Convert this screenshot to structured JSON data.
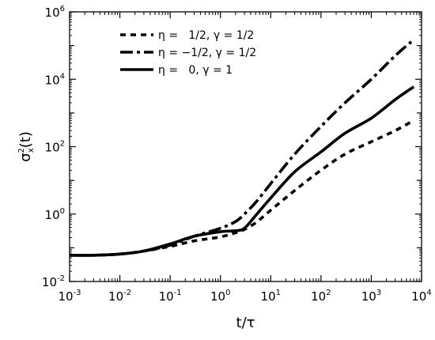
{
  "chart_data": {
    "type": "line",
    "title": "",
    "xlabel": "t/τ",
    "ylabel_base": "σ",
    "ylabel_sup": "2",
    "ylabel_sub": "x",
    "ylabel_tail": "(t)",
    "xscale": "log",
    "yscale": "log",
    "xlim": [
      0.001,
      10000
    ],
    "ylim": [
      0.01,
      1000000
    ],
    "grid": false,
    "legend_position": "top-left",
    "x_ticks": [
      {
        "base": "10",
        "exp": "-3",
        "value": 0.001
      },
      {
        "base": "10",
        "exp": "-2",
        "value": 0.01
      },
      {
        "base": "10",
        "exp": "-1",
        "value": 0.1
      },
      {
        "base": "10",
        "exp": "0",
        "value": 1
      },
      {
        "base": "10",
        "exp": "1",
        "value": 10
      },
      {
        "base": "10",
        "exp": "2",
        "value": 100
      },
      {
        "base": "10",
        "exp": "3",
        "value": 1000
      },
      {
        "base": "10",
        "exp": "4",
        "value": 10000
      }
    ],
    "y_ticks": [
      {
        "base": "10",
        "exp": "-2",
        "value": 0.01
      },
      {
        "base": "10",
        "exp": "0",
        "value": 1
      },
      {
        "base": "10",
        "exp": "2",
        "value": 100
      },
      {
        "base": "10",
        "exp": "4",
        "value": 10000
      },
      {
        "base": "10",
        "exp": "6",
        "value": 1000000
      }
    ],
    "series": [
      {
        "name": "η =   1/2, γ = 1/2",
        "style": "dotted",
        "color": "#000000",
        "x": [
          0.001,
          0.003,
          0.01,
          0.03,
          0.1,
          0.3,
          1,
          2,
          3,
          5,
          10,
          30,
          100,
          300,
          1000,
          3000,
          7000
        ],
        "y": [
          0.06,
          0.06,
          0.065,
          0.08,
          0.11,
          0.16,
          0.21,
          0.28,
          0.35,
          0.55,
          1.3,
          5,
          20,
          60,
          140,
          300,
          600
        ]
      },
      {
        "name": "η = −1/2, γ = 1/2",
        "style": "dash-dot",
        "color": "#000000",
        "x": [
          0.001,
          0.003,
          0.01,
          0.03,
          0.1,
          0.3,
          1,
          2,
          3,
          5,
          10,
          30,
          100,
          300,
          1000,
          3000,
          7000
        ],
        "y": [
          0.06,
          0.06,
          0.065,
          0.08,
          0.12,
          0.22,
          0.38,
          0.6,
          1,
          2.2,
          8,
          60,
          400,
          2000,
          10000,
          50000,
          150000
        ]
      },
      {
        "name": "η =   0, γ = 1",
        "style": "solid",
        "color": "#000000",
        "x": [
          0.001,
          0.003,
          0.01,
          0.03,
          0.1,
          0.3,
          1,
          2,
          3,
          5,
          10,
          30,
          100,
          300,
          1000,
          3000,
          7000
        ],
        "y": [
          0.06,
          0.06,
          0.065,
          0.08,
          0.13,
          0.22,
          0.3,
          0.32,
          0.38,
          0.9,
          3,
          18,
          70,
          250,
          700,
          2500,
          6000
        ]
      }
    ]
  }
}
